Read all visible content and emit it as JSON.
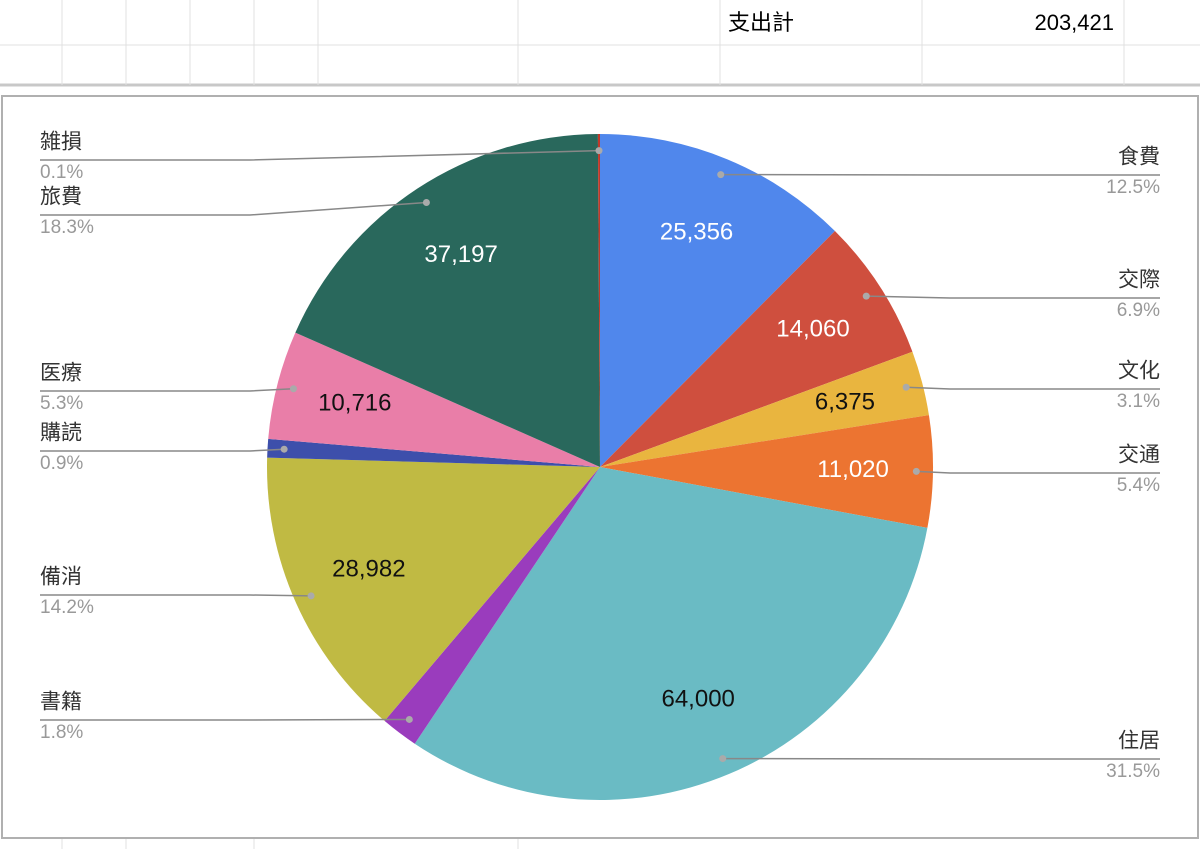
{
  "sheet": {
    "label": "支出計",
    "total": "203,421"
  },
  "chart_data": {
    "type": "pie",
    "categories": [
      "食費",
      "交際",
      "文化",
      "交通",
      "住居",
      "書籍",
      "備消",
      "購読",
      "医療",
      "旅費",
      "雑損"
    ],
    "values": [
      25356,
      14060,
      6375,
      11020,
      64000,
      3680,
      28982,
      1830,
      10716,
      37197,
      205
    ],
    "value_labels": [
      "25,356",
      "14,060",
      "6,375",
      "11,020",
      "64,000",
      null,
      "28,982",
      null,
      "10,716",
      "37,197",
      null
    ],
    "percent_labels": [
      "12.5%",
      "6.9%",
      "3.1%",
      "5.4%",
      "31.5%",
      "1.8%",
      "14.2%",
      "0.9%",
      "5.3%",
      "18.3%",
      "0.1%"
    ],
    "colors": [
      "#5087ec",
      "#cf4f3e",
      "#e9b53f",
      "#ec7431",
      "#6abbc4",
      "#9a3cbd",
      "#c0ba43",
      "#3d4fab",
      "#e97ea8",
      "#29685c",
      "#c0392b"
    ]
  }
}
